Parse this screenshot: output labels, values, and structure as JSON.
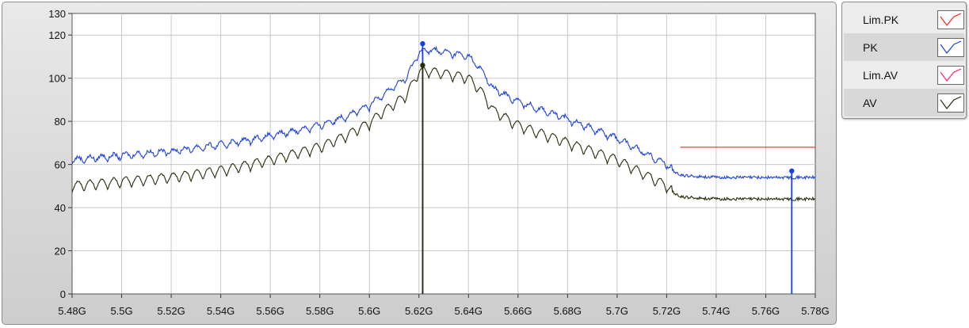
{
  "chart_data": {
    "type": "line",
    "xlim": [
      5.48,
      5.78
    ],
    "ylim": [
      0,
      130
    ],
    "x_tick_labels": [
      "5.48G",
      "5.5G",
      "5.52G",
      "5.54G",
      "5.56G",
      "5.58G",
      "5.6G",
      "5.62G",
      "5.64G",
      "5.66G",
      "5.68G",
      "5.7G",
      "5.72G",
      "5.74G",
      "5.76G",
      "5.78G"
    ],
    "x_tick_values": [
      5.48,
      5.5,
      5.52,
      5.54,
      5.56,
      5.58,
      5.6,
      5.62,
      5.64,
      5.66,
      5.68,
      5.7,
      5.72,
      5.74,
      5.76,
      5.78
    ],
    "y_tick_labels": [
      "0",
      "20",
      "40",
      "60",
      "80",
      "100",
      "120",
      "130"
    ],
    "y_tick_values": [
      0,
      20,
      40,
      60,
      80,
      100,
      120,
      130
    ],
    "grid": true,
    "legend_position": "right",
    "series": [
      {
        "name": "Lim.PK",
        "color": "#ff2020",
        "x": [
          5.7255,
          5.78
        ],
        "y": [
          68,
          68
        ]
      },
      {
        "name": "PK",
        "color": "#1a3fe0",
        "ripple": 3,
        "x": [
          5.48,
          5.5,
          5.52,
          5.54,
          5.56,
          5.58,
          5.59,
          5.6,
          5.605,
          5.61,
          5.615,
          5.62,
          5.625,
          5.63,
          5.64,
          5.645,
          5.65,
          5.66,
          5.68,
          5.7,
          5.71,
          5.72,
          5.725,
          5.74,
          5.76,
          5.78
        ],
        "y": [
          62,
          64,
          66,
          69,
          73,
          78,
          82,
          87,
          92,
          96,
          100,
          112,
          113,
          112,
          110,
          104,
          95,
          89,
          81,
          72,
          66,
          60,
          55,
          54,
          54,
          54
        ]
      },
      {
        "name": "Lim.AV",
        "color": "#ff2060",
        "x": [],
        "y": []
      },
      {
        "name": "AV",
        "color": "#2a2a0a",
        "ripple": 5,
        "x": [
          5.48,
          5.5,
          5.52,
          5.54,
          5.56,
          5.58,
          5.59,
          5.6,
          5.605,
          5.61,
          5.615,
          5.62,
          5.625,
          5.63,
          5.64,
          5.645,
          5.65,
          5.66,
          5.68,
          5.7,
          5.71,
          5.72,
          5.725,
          5.74,
          5.76,
          5.78
        ],
        "y": [
          50,
          52,
          54,
          57,
          62,
          68,
          73,
          79,
          84,
          88,
          92,
          103,
          103,
          102,
          100,
          94,
          85,
          78,
          70,
          62,
          56,
          50,
          45,
          44,
          44,
          44
        ]
      }
    ],
    "markers": [
      {
        "series": "PK",
        "x": 5.6215,
        "y": 116,
        "color": "#1a3fe0",
        "cursor": true
      },
      {
        "series": "AV",
        "x": 5.6215,
        "y": 106,
        "color": "#2a2a0a",
        "cursor": true
      },
      {
        "series": "PK",
        "x": 5.7705,
        "y": 57,
        "color": "#1a3fe0",
        "cursor": true
      }
    ]
  },
  "legend": {
    "items": [
      {
        "label": "Lim.PK",
        "color": "#ff2020"
      },
      {
        "label": "PK",
        "color": "#1a3fe0"
      },
      {
        "label": "Lim.AV",
        "color": "#ff2060"
      },
      {
        "label": "AV",
        "color": "#2a2a0a"
      }
    ]
  }
}
